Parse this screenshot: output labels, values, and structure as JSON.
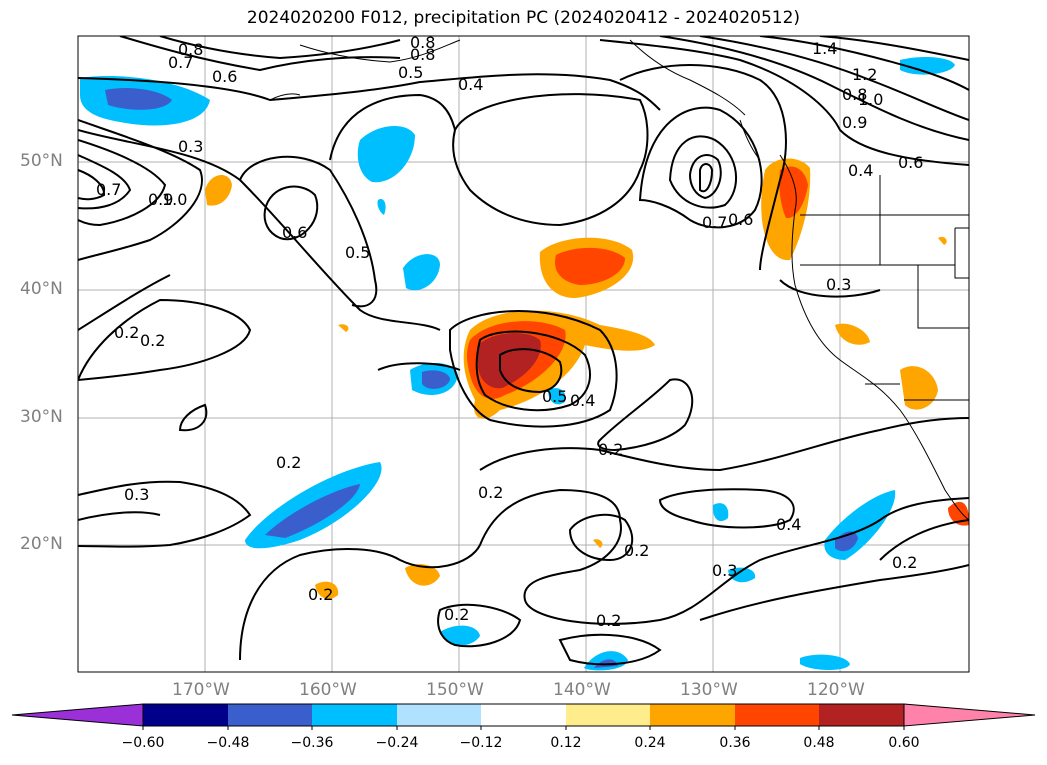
{
  "title": "2024020200 F012, precipitation PC (2024020412 - 2024020512)",
  "lat_labels": [
    "50°N",
    "40°N",
    "30°N",
    "20°N"
  ],
  "lon_labels": [
    "170°W",
    "160°W",
    "150°W",
    "140°W",
    "130°W",
    "120°W"
  ],
  "contour_labels": [
    "0.8",
    "0.7",
    "0.6",
    "0.8",
    "0.8",
    "0.5",
    "0.4",
    "1.4",
    "1.2",
    "1.0",
    "0.8",
    "0.9",
    "0.6",
    "0.3",
    "0.7",
    "0.9",
    "1.0",
    "0.6",
    "0.5",
    "0.7",
    "0.6",
    "0.4",
    "0.3",
    "0.2",
    "0.5",
    "0.4",
    "0.2",
    "0.2",
    "0.3",
    "0.2",
    "0.2",
    "0.4",
    "0.2",
    "0.3",
    "0.2",
    "0.2",
    "0.2",
    "0.2"
  ],
  "colorbar": {
    "colors": [
      "#9b30d9",
      "#00008b",
      "#3a5fcd",
      "#00bfff",
      "#b0e2ff",
      "#ffffff",
      "#ffec8b",
      "#ffa500",
      "#ff4500",
      "#b22222",
      "#ff82ab"
    ],
    "ticks": [
      "−0.60",
      "−0.48",
      "−0.36",
      "−0.24",
      "−0.12",
      "0.12",
      "0.24",
      "0.36",
      "0.48",
      "0.60"
    ]
  }
}
